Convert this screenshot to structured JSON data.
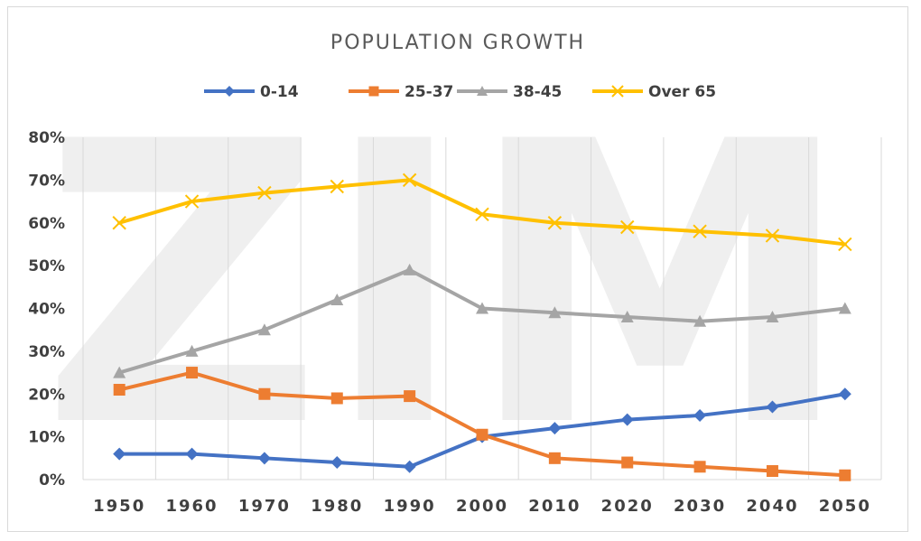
{
  "chart_data": {
    "type": "line",
    "title": "POPULATION GROWTH",
    "watermark": "ZIM",
    "categories": [
      "1950",
      "1960",
      "1970",
      "1980",
      "1990",
      "2000",
      "2010",
      "2020",
      "2030",
      "2040",
      "2050"
    ],
    "ylim": [
      0,
      80
    ],
    "yticks": [
      "0%",
      "10%",
      "20%",
      "30%",
      "40%",
      "50%",
      "60%",
      "70%",
      "80%"
    ],
    "ytick_values": [
      0,
      10,
      20,
      30,
      40,
      50,
      60,
      70,
      80
    ],
    "grid": "vertical",
    "legend_position": "top",
    "series": [
      {
        "name": "0-14",
        "color": "#4472C4",
        "marker": "diamond",
        "values": [
          6,
          6,
          5,
          4,
          3,
          10,
          12,
          14,
          15,
          17,
          20
        ]
      },
      {
        "name": "25-37",
        "color": "#ED7D31",
        "marker": "square",
        "values": [
          21,
          25,
          20,
          19,
          19.5,
          10.5,
          5,
          4,
          3,
          2,
          1
        ]
      },
      {
        "name": "38-45",
        "color": "#A5A5A5",
        "marker": "triangle",
        "values": [
          25,
          30,
          35,
          42,
          49,
          40,
          39,
          38,
          37,
          38,
          40
        ]
      },
      {
        "name": "Over 65",
        "color": "#FFC000",
        "marker": "x",
        "values": [
          60,
          65,
          67,
          68.5,
          70,
          62,
          60,
          59,
          58,
          57,
          55
        ]
      }
    ]
  }
}
